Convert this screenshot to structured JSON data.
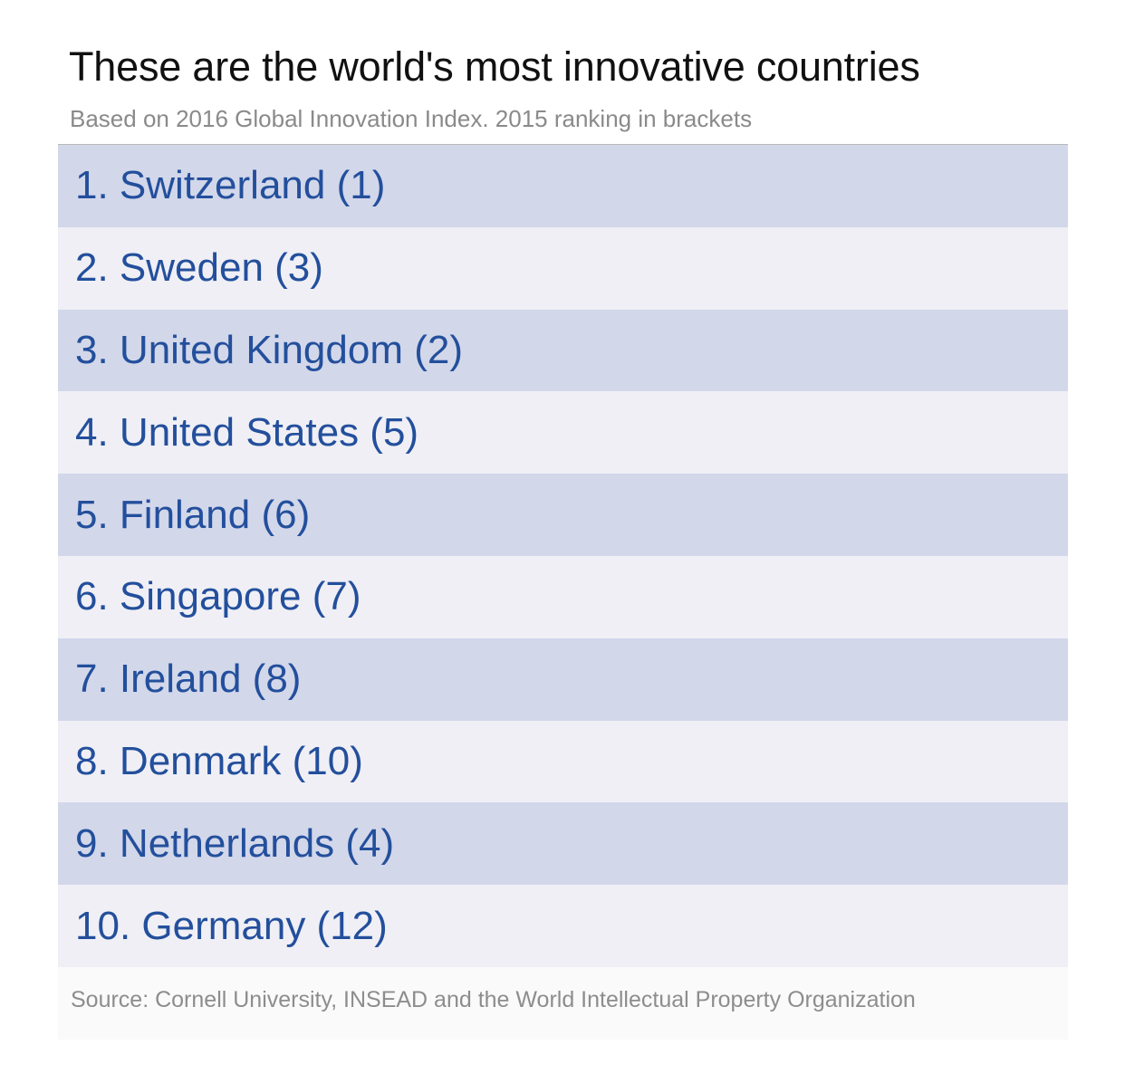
{
  "chart_data": {
    "type": "table",
    "title": "These are the world's most innovative countries",
    "subtitle": "Based on 2016 Global Innovation Index. 2015 ranking in brackets",
    "source": "Source: Cornell University, INSEAD and the World Intellectual Property Organization",
    "rows": [
      {
        "rank": 1,
        "country": "Switzerland",
        "prev_rank": 1,
        "label": "1. Switzerland (1)"
      },
      {
        "rank": 2,
        "country": "Sweden",
        "prev_rank": 3,
        "label": "2. Sweden (3)"
      },
      {
        "rank": 3,
        "country": "United Kingdom",
        "prev_rank": 2,
        "label": "3. United Kingdom (2)"
      },
      {
        "rank": 4,
        "country": "United States",
        "prev_rank": 5,
        "label": "4. United States (5)"
      },
      {
        "rank": 5,
        "country": "Finland",
        "prev_rank": 6,
        "label": "5. Finland (6)"
      },
      {
        "rank": 6,
        "country": "Singapore",
        "prev_rank": 7,
        "label": "6. Singapore (7)"
      },
      {
        "rank": 7,
        "country": "Ireland",
        "prev_rank": 8,
        "label": "7. Ireland (8)"
      },
      {
        "rank": 8,
        "country": "Denmark",
        "prev_rank": 10,
        "label": "8. Denmark (10)"
      },
      {
        "rank": 9,
        "country": "Netherlands",
        "prev_rank": 4,
        "label": "9. Netherlands (4)"
      },
      {
        "rank": 10,
        "country": "Germany",
        "prev_rank": 12,
        "label": "10. Germany (12)"
      }
    ],
    "colors": {
      "row_odd": "#d2d7ea",
      "row_even": "#efeff5",
      "text": "#234f9c"
    }
  }
}
